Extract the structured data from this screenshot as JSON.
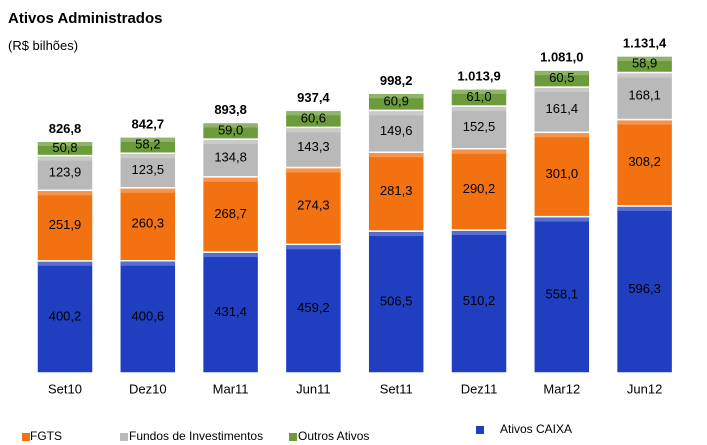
{
  "chart_data": {
    "type": "stacked_bar",
    "title": "Ativos Administrados",
    "subtitle": "(R$ bilhões)",
    "categories": [
      "Set10",
      "Dez10",
      "Mar11",
      "Jun11",
      "Set11",
      "Dez11",
      "Mar12",
      "Jun12"
    ],
    "series": [
      {
        "name": "Ativos CAIXA",
        "color": "#1f3fc0",
        "values": [
          400.2,
          400.6,
          431.4,
          459.2,
          506.5,
          510.2,
          558.1,
          596.3
        ],
        "value_labels": [
          "400,2",
          "400,6",
          "431,4",
          "459,2",
          "506,5",
          "510,2",
          "558,1",
          "596,3"
        ]
      },
      {
        "name": "FGTS",
        "color": "#f27212",
        "values": [
          251.9,
          260.3,
          268.7,
          274.3,
          281.3,
          290.2,
          301.0,
          308.2
        ],
        "value_labels": [
          "251,9",
          "260,3",
          "268,7",
          "274,3",
          "281,3",
          "290,2",
          "301,0",
          "308,2"
        ]
      },
      {
        "name": "Fundos de Investimentos",
        "color": "#b9b9b9",
        "values": [
          123.9,
          123.5,
          134.8,
          143.3,
          149.6,
          152.5,
          161.4,
          168.1
        ],
        "value_labels": [
          "123,9",
          "123,5",
          "134,8",
          "143,3",
          "149,6",
          "152,5",
          "161,4",
          "168,1"
        ]
      },
      {
        "name": "Outros Ativos",
        "color": "#6b9b3a",
        "values": [
          50.8,
          58.2,
          59.0,
          60.6,
          60.9,
          61.0,
          60.5,
          58.9
        ],
        "value_labels": [
          "50,8",
          "58,2",
          "59,0",
          "60,6",
          "60,9",
          "61,0",
          "60,5",
          "58,9"
        ]
      }
    ],
    "totals": {
      "values": [
        826.8,
        842.7,
        893.8,
        937.4,
        998.2,
        1013.9,
        1081.0,
        1131.4
      ],
      "value_labels": [
        "826,8",
        "842,7",
        "893,8",
        "937,4",
        "998,2",
        "1.013,9",
        "1.081,0",
        "1.131,4"
      ]
    }
  }
}
